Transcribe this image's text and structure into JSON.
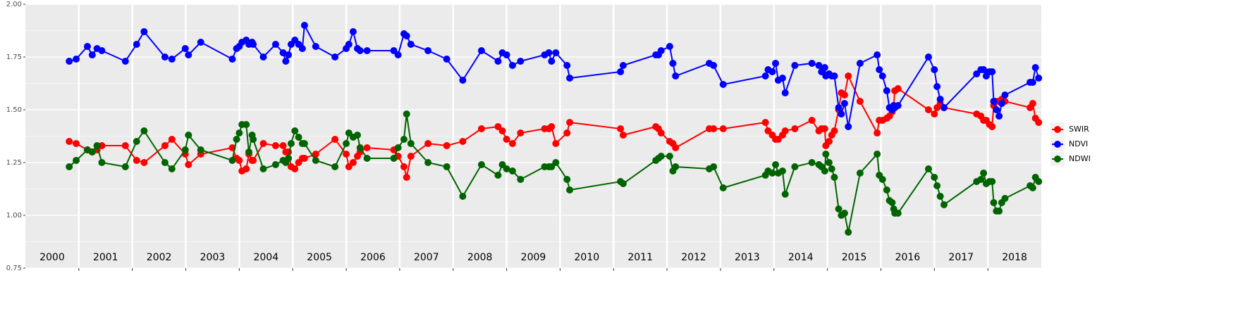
{
  "chart_data": {
    "type": "line",
    "x": [
      2000.82,
      2000.95,
      2001.16,
      2001.25,
      2001.34,
      2001.43,
      2001.87,
      2002.08,
      2002.22,
      2002.61,
      2002.74,
      2002.99,
      2003.05,
      2003.28,
      2003.87,
      2003.95,
      2004.0,
      2004.05,
      2004.13,
      2004.18,
      2004.24,
      2004.26,
      2004.45,
      2004.68,
      2004.82,
      2004.87,
      2004.92,
      2004.97,
      2005.04,
      2005.11,
      2005.18,
      2005.22,
      2005.43,
      2005.79,
      2006.0,
      2006.05,
      2006.13,
      2006.21,
      2006.26,
      2006.39,
      2006.89,
      2006.97,
      2007.08,
      2007.13,
      2007.21,
      2007.53,
      2007.88,
      2008.18,
      2008.53,
      2008.84,
      2008.92,
      2009.0,
      2009.11,
      2009.26,
      2009.71,
      2009.79,
      2009.84,
      2009.92,
      2010.13,
      2010.18,
      2011.13,
      2011.18,
      2011.79,
      2011.84,
      2011.89,
      2012.05,
      2012.11,
      2012.16,
      2012.79,
      2012.87,
      2013.05,
      2013.84,
      2013.89,
      2013.97,
      2014.03,
      2014.08,
      2014.16,
      2014.21,
      2014.39,
      2014.71,
      2014.84,
      2014.89,
      2014.95,
      2014.97,
      2015.03,
      2015.08,
      2015.13,
      2015.21,
      2015.26,
      2015.32,
      2015.39,
      2015.61,
      2015.93,
      2015.97,
      2016.03,
      2016.11,
      2016.16,
      2016.21,
      2016.24,
      2016.26,
      2016.32,
      2016.89,
      2017.0,
      2017.05,
      2017.11,
      2017.18,
      2017.79,
      2017.87,
      2017.92,
      2017.97,
      2018.03,
      2018.08,
      2018.11,
      2018.16,
      2018.21,
      2018.26,
      2018.32,
      2018.79,
      2018.84,
      2018.89,
      2018.95
    ],
    "series": [
      {
        "name": "SWIR",
        "color": "#ff0000",
        "values": [
          1.35,
          1.34,
          1.31,
          1.3,
          1.31,
          1.33,
          1.33,
          1.26,
          1.25,
          1.33,
          1.36,
          1.29,
          1.24,
          1.29,
          1.32,
          1.27,
          1.26,
          1.21,
          1.22,
          1.29,
          1.26,
          1.26,
          1.34,
          1.33,
          1.33,
          1.3,
          1.3,
          1.23,
          1.22,
          1.25,
          1.27,
          1.27,
          1.29,
          1.36,
          1.29,
          1.23,
          1.25,
          1.28,
          1.3,
          1.32,
          1.31,
          1.28,
          1.23,
          1.18,
          1.28,
          1.34,
          1.33,
          1.35,
          1.41,
          1.42,
          1.4,
          1.36,
          1.34,
          1.39,
          1.41,
          1.41,
          1.42,
          1.34,
          1.39,
          1.44,
          1.41,
          1.38,
          1.42,
          1.41,
          1.39,
          1.35,
          1.34,
          1.32,
          1.41,
          1.41,
          1.41,
          1.44,
          1.4,
          1.38,
          1.36,
          1.36,
          1.38,
          1.4,
          1.41,
          1.45,
          1.4,
          1.41,
          1.41,
          1.33,
          1.35,
          1.38,
          1.4,
          1.5,
          1.58,
          1.57,
          1.66,
          1.54,
          1.39,
          1.45,
          1.45,
          1.46,
          1.47,
          1.49,
          1.52,
          1.59,
          1.6,
          1.5,
          1.48,
          1.51,
          1.53,
          1.51,
          1.48,
          1.47,
          1.45,
          1.45,
          1.43,
          1.42,
          1.52,
          1.54,
          1.54,
          1.55,
          1.54,
          1.51,
          1.53,
          1.46,
          1.44
        ]
      },
      {
        "name": "NDVI",
        "color": "#0000ff",
        "values": [
          1.73,
          1.74,
          1.8,
          1.76,
          1.79,
          1.78,
          1.73,
          1.81,
          1.87,
          1.75,
          1.74,
          1.79,
          1.76,
          1.82,
          1.74,
          1.79,
          1.8,
          1.82,
          1.83,
          1.81,
          1.82,
          1.81,
          1.75,
          1.81,
          1.77,
          1.73,
          1.76,
          1.81,
          1.83,
          1.81,
          1.79,
          1.9,
          1.8,
          1.75,
          1.79,
          1.81,
          1.87,
          1.79,
          1.78,
          1.78,
          1.78,
          1.76,
          1.86,
          1.85,
          1.81,
          1.78,
          1.74,
          1.64,
          1.78,
          1.73,
          1.77,
          1.76,
          1.71,
          1.73,
          1.76,
          1.77,
          1.73,
          1.77,
          1.71,
          1.65,
          1.68,
          1.71,
          1.76,
          1.76,
          1.78,
          1.8,
          1.72,
          1.66,
          1.72,
          1.71,
          1.62,
          1.66,
          1.69,
          1.68,
          1.72,
          1.64,
          1.65,
          1.58,
          1.71,
          1.72,
          1.71,
          1.68,
          1.7,
          1.66,
          1.67,
          1.66,
          1.66,
          1.51,
          1.48,
          1.53,
          1.42,
          1.72,
          1.76,
          1.69,
          1.66,
          1.59,
          1.51,
          1.5,
          1.52,
          1.51,
          1.52,
          1.75,
          1.69,
          1.61,
          1.55,
          1.51,
          1.67,
          1.69,
          1.69,
          1.66,
          1.68,
          1.68,
          1.54,
          1.5,
          1.47,
          1.53,
          1.57,
          1.63,
          1.63,
          1.7,
          1.65
        ]
      },
      {
        "name": "NDWI",
        "color": "#006400",
        "values": [
          1.23,
          1.26,
          1.31,
          1.3,
          1.33,
          1.25,
          1.23,
          1.35,
          1.4,
          1.25,
          1.22,
          1.31,
          1.38,
          1.31,
          1.26,
          1.36,
          1.39,
          1.43,
          1.43,
          1.3,
          1.38,
          1.36,
          1.22,
          1.24,
          1.26,
          1.25,
          1.27,
          1.34,
          1.4,
          1.37,
          1.34,
          1.34,
          1.26,
          1.23,
          1.34,
          1.39,
          1.37,
          1.38,
          1.32,
          1.27,
          1.27,
          1.32,
          1.36,
          1.48,
          1.34,
          1.25,
          1.23,
          1.09,
          1.24,
          1.19,
          1.24,
          1.22,
          1.21,
          1.17,
          1.23,
          1.23,
          1.23,
          1.25,
          1.17,
          1.12,
          1.16,
          1.15,
          1.26,
          1.27,
          1.28,
          1.28,
          1.21,
          1.23,
          1.22,
          1.23,
          1.13,
          1.19,
          1.21,
          1.2,
          1.24,
          1.2,
          1.21,
          1.1,
          1.23,
          1.25,
          1.24,
          1.23,
          1.21,
          1.29,
          1.25,
          1.22,
          1.18,
          1.03,
          1.0,
          1.01,
          0.92,
          1.2,
          1.29,
          1.19,
          1.17,
          1.12,
          1.07,
          1.06,
          1.03,
          1.01,
          1.01,
          1.22,
          1.18,
          1.14,
          1.09,
          1.05,
          1.16,
          1.17,
          1.2,
          1.15,
          1.16,
          1.16,
          1.06,
          1.02,
          1.02,
          1.06,
          1.08,
          1.14,
          1.13,
          1.18,
          1.16
        ]
      }
    ],
    "xlim": [
      2000,
      2019
    ],
    "xticks": [
      2001,
      2002,
      2003,
      2004,
      2005,
      2006,
      2007,
      2008,
      2009,
      2010,
      2011,
      2012,
      2013,
      2014,
      2015,
      2016,
      2017,
      2018
    ],
    "year_labels": [
      {
        "x": 2000.5,
        "label": "2000"
      },
      {
        "x": 2001.5,
        "label": "2001"
      },
      {
        "x": 2002.5,
        "label": "2002"
      },
      {
        "x": 2003.5,
        "label": "2003"
      },
      {
        "x": 2004.5,
        "label": "2004"
      },
      {
        "x": 2005.5,
        "label": "2005"
      },
      {
        "x": 2006.5,
        "label": "2006"
      },
      {
        "x": 2007.5,
        "label": "2007"
      },
      {
        "x": 2008.5,
        "label": "2008"
      },
      {
        "x": 2009.5,
        "label": "2009"
      },
      {
        "x": 2010.5,
        "label": "2010"
      },
      {
        "x": 2011.5,
        "label": "2011"
      },
      {
        "x": 2012.5,
        "label": "2012"
      },
      {
        "x": 2013.5,
        "label": "2013"
      },
      {
        "x": 2014.5,
        "label": "2014"
      },
      {
        "x": 2015.5,
        "label": "2015"
      },
      {
        "x": 2016.5,
        "label": "2016"
      },
      {
        "x": 2017.5,
        "label": "2017"
      },
      {
        "x": 2018.5,
        "label": "2018"
      }
    ],
    "ylim": [
      0.75,
      2.0
    ],
    "yticks": [
      {
        "value": 0.75,
        "label": "0.75"
      },
      {
        "value": 1.0,
        "label": "1.00"
      },
      {
        "value": 1.25,
        "label": "1.25"
      },
      {
        "value": 1.5,
        "label": "1.50"
      },
      {
        "value": 1.75,
        "label": "1.75"
      },
      {
        "value": 2.0,
        "label": "2.00"
      }
    ],
    "grid": true,
    "legend": "right"
  }
}
